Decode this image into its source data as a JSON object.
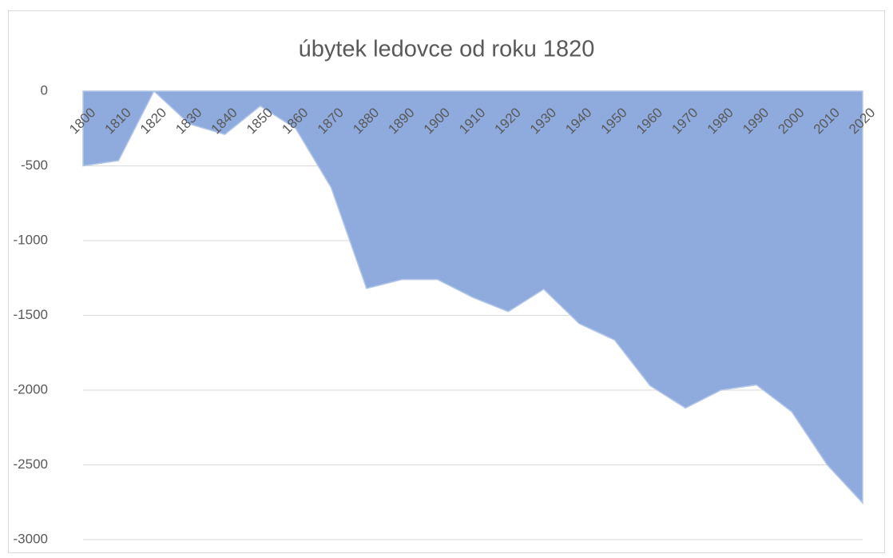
{
  "chart_data": {
    "type": "area",
    "title": "úbytek ledovce od roku 1820",
    "categories": [
      "1800",
      "1810",
      "1820",
      "1830",
      "1840",
      "1850",
      "1860",
      "1870",
      "1880",
      "1890",
      "1900",
      "1910",
      "1920",
      "1930",
      "1940",
      "1950",
      "1960",
      "1970",
      "1980",
      "1990",
      "2000",
      "2010",
      "2020"
    ],
    "series": [
      {
        "color": "#8faadc",
        "values": [
          -500,
          -465,
          0,
          -220,
          -290,
          -100,
          -250,
          -645,
          -1320,
          -1260,
          -1260,
          -1380,
          -1475,
          -1325,
          -1555,
          -1665,
          -1970,
          -2120,
          -2000,
          -1965,
          -2145,
          -2500,
          -2755
        ]
      }
    ],
    "ylim": [
      -3000,
      0
    ],
    "yticks": [
      0,
      -500,
      -1000,
      -1500,
      -2000,
      -2500,
      -3000
    ],
    "grid": true
  }
}
